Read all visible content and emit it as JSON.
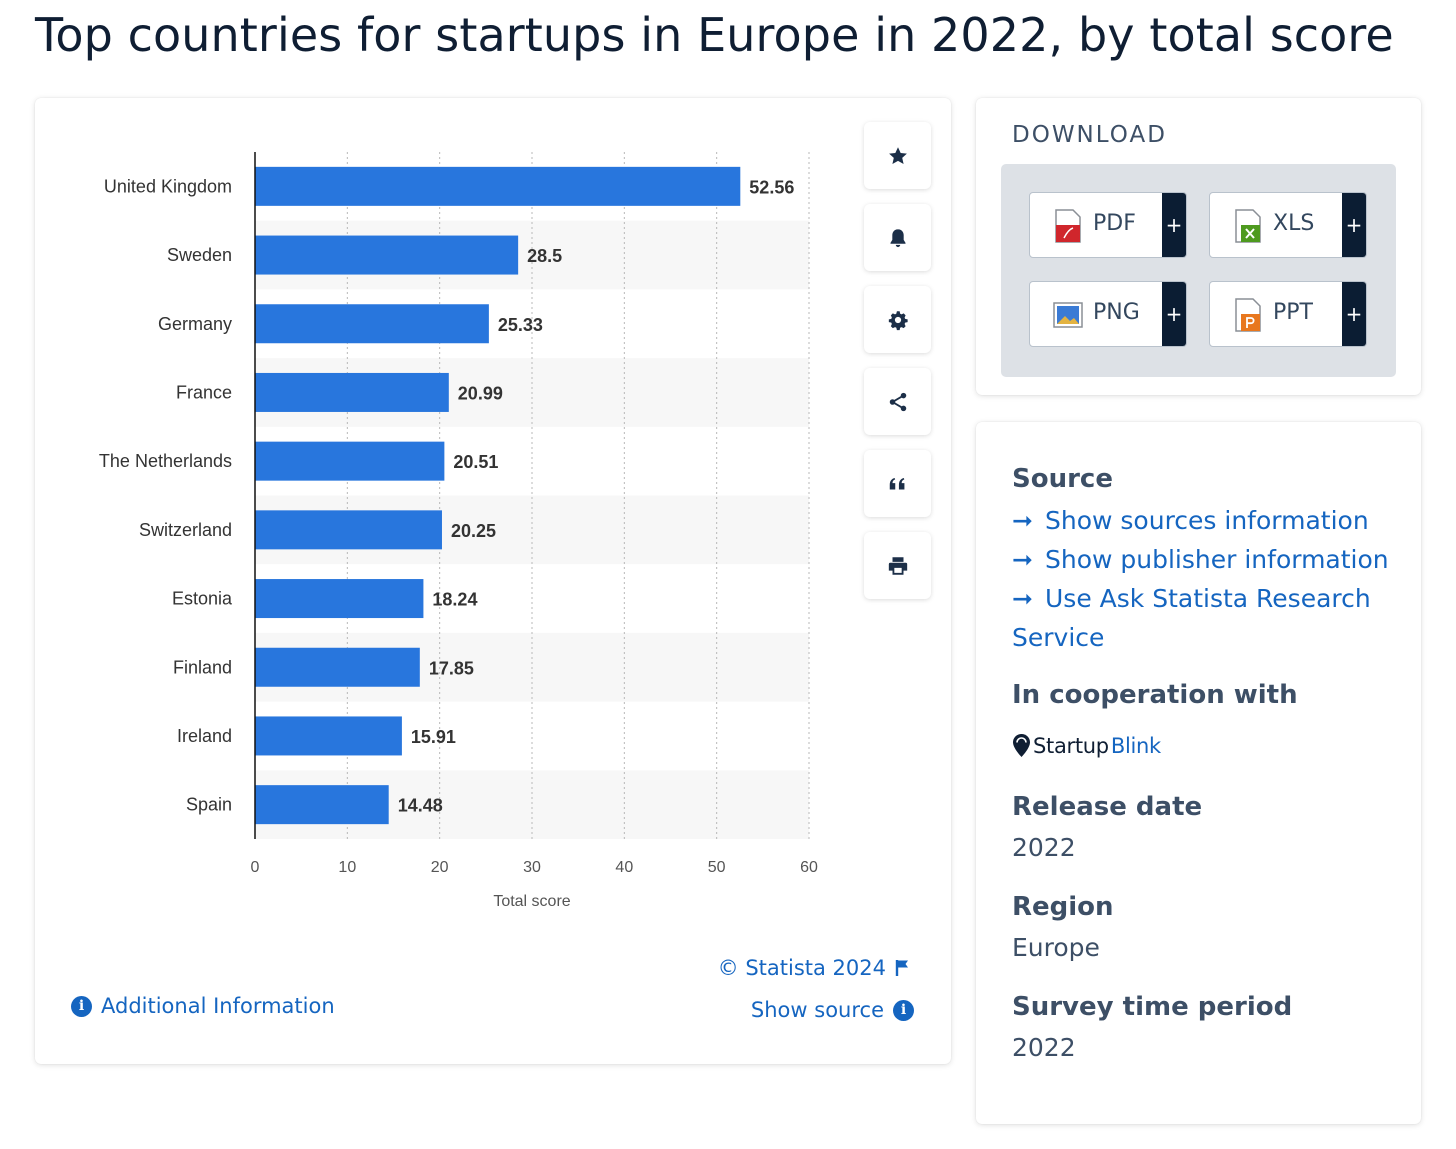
{
  "page": {
    "title": "Top countries for startups in Europe in 2022, by total score"
  },
  "chart_data": {
    "type": "bar",
    "orientation": "horizontal",
    "categories": [
      "United Kingdom",
      "Sweden",
      "Germany",
      "France",
      "The Netherlands",
      "Switzerland",
      "Estonia",
      "Finland",
      "Ireland",
      "Spain"
    ],
    "values": [
      52.56,
      28.5,
      25.33,
      20.99,
      20.51,
      20.25,
      18.24,
      17.85,
      15.91,
      14.48
    ],
    "value_labels": [
      "52.56",
      "28.5",
      "25.33",
      "20.99",
      "20.51",
      "20.25",
      "18.24",
      "17.85",
      "15.91",
      "14.48"
    ],
    "xlabel": "Total score",
    "ylabel": "",
    "xlim": [
      0,
      60
    ],
    "xticks": [
      "0",
      "10",
      "20",
      "30",
      "40",
      "50",
      "60"
    ],
    "grid": "vertical dotted",
    "bar_color": "#2876dd",
    "band_color": "#f7f7f7"
  },
  "toolbar": {
    "icons": [
      "star-icon",
      "bell-icon",
      "gear-icon",
      "share-icon",
      "quote-icon",
      "print-icon"
    ]
  },
  "chart_footer": {
    "copyright": "© Statista 2024",
    "show_source": "Show source",
    "additional_info": "Additional Information"
  },
  "download": {
    "heading": "DOWNLOAD",
    "buttons": [
      {
        "label": "PDF",
        "plus": "+",
        "icon": "pdf-file-icon",
        "color": "#d0262c"
      },
      {
        "label": "XLS",
        "plus": "+",
        "icon": "xls-file-icon",
        "color": "#4e9a1f"
      },
      {
        "label": "PNG",
        "plus": "+",
        "icon": "png-file-icon",
        "color": "#3a7bd5"
      },
      {
        "label": "PPT",
        "plus": "+",
        "icon": "ppt-file-icon",
        "color": "#e8771e"
      }
    ]
  },
  "info": {
    "source_heading": "Source",
    "links": [
      "Show sources information",
      "Show publisher information",
      "Use Ask Statista Research Service"
    ],
    "arrow": "➞",
    "cooperation_heading": "In cooperation with",
    "partner_part1": "Startup",
    "partner_part2": "Blink",
    "release_heading": "Release date",
    "release_value": "2022",
    "region_heading": "Region",
    "region_value": "Europe",
    "survey_heading": "Survey time period",
    "survey_value": "2022"
  },
  "colors": {
    "accent": "#1565c0",
    "heading": "#3d4f66",
    "dark_button": "#0b1d33"
  }
}
